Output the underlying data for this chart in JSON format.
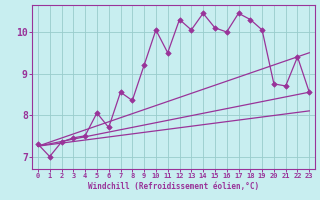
{
  "xlabel": "Windchill (Refroidissement éolien,°C)",
  "background_color": "#c8eef0",
  "grid_color": "#99cccc",
  "line_color": "#993399",
  "spine_color": "#993399",
  "tick_color": "#993399",
  "xlim": [
    -0.5,
    23.5
  ],
  "ylim": [
    6.7,
    10.65
  ],
  "yticks": [
    7,
    8,
    9,
    10
  ],
  "xticks": [
    0,
    1,
    2,
    3,
    4,
    5,
    6,
    7,
    8,
    9,
    10,
    11,
    12,
    13,
    14,
    15,
    16,
    17,
    18,
    19,
    20,
    21,
    22,
    23
  ],
  "series": [
    {
      "x": [
        0,
        1,
        2,
        3,
        4,
        5,
        6,
        7,
        8,
        9,
        10,
        11,
        12,
        13,
        14,
        15,
        16,
        17,
        18,
        19,
        20,
        21,
        22,
        23
      ],
      "y": [
        7.3,
        7.0,
        7.35,
        7.45,
        7.5,
        8.05,
        7.7,
        8.55,
        8.35,
        9.2,
        10.05,
        9.5,
        10.3,
        10.05,
        10.45,
        10.1,
        10.0,
        10.45,
        10.3,
        10.05,
        8.75,
        8.7,
        9.4,
        8.55
      ],
      "style": "marker"
    },
    {
      "x": [
        0,
        23
      ],
      "y": [
        7.25,
        9.5
      ],
      "style": "line"
    },
    {
      "x": [
        0,
        23
      ],
      "y": [
        7.25,
        8.55
      ],
      "style": "line"
    },
    {
      "x": [
        0,
        23
      ],
      "y": [
        7.25,
        8.1
      ],
      "style": "line"
    }
  ],
  "xlabel_fontsize": 5.5,
  "xlabel_fontfamily": "monospace",
  "xlabel_fontweight": "bold",
  "ytick_fontsize": 7.0,
  "xtick_fontsize": 5.0,
  "tick_fontfamily": "monospace",
  "tick_fontweight": "bold",
  "marker": "D",
  "markersize": 2.8,
  "linewidth": 0.9
}
